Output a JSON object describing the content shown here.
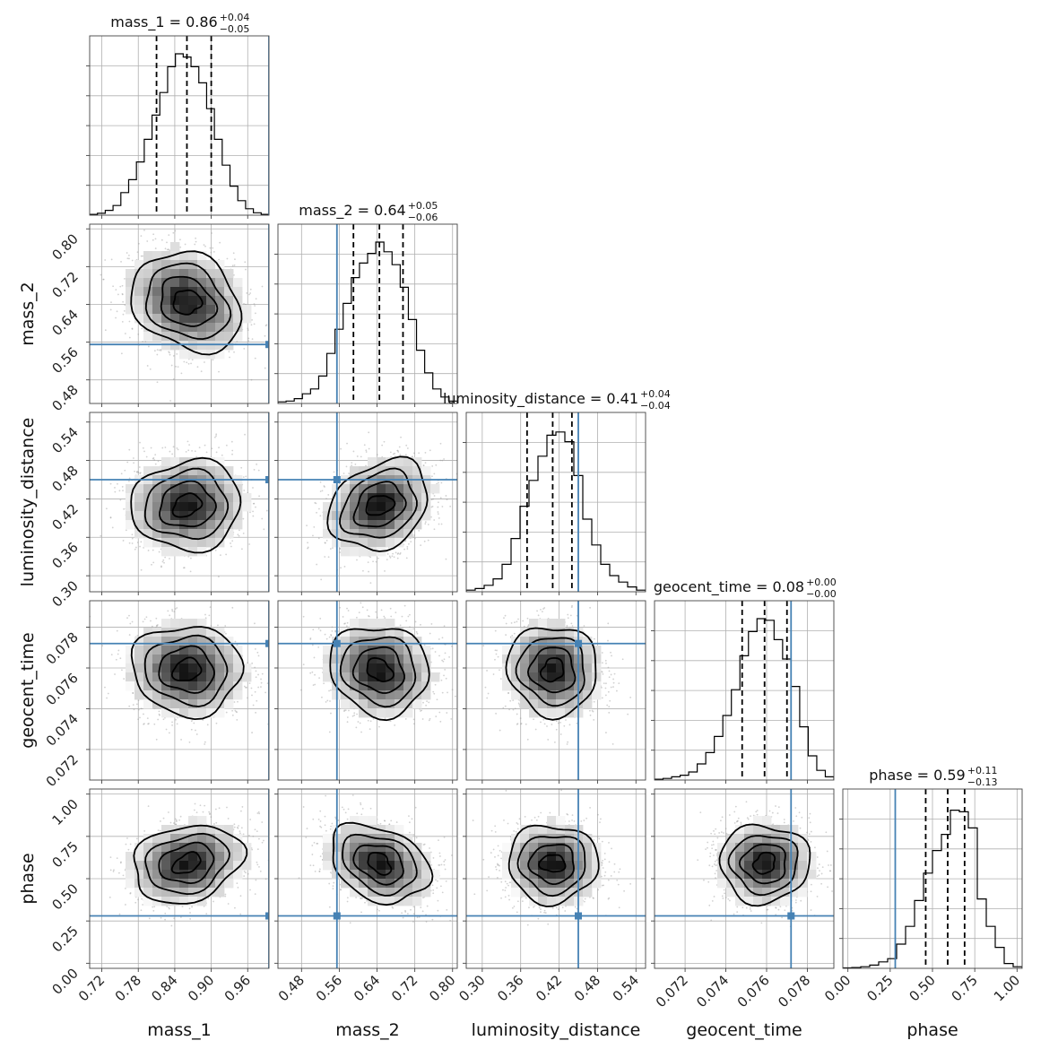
{
  "chart_data": {
    "type": "corner",
    "parameters": [
      {
        "name": "mass_1",
        "range": [
          0.7,
          0.995
        ],
        "ticks": [
          "0.72",
          "0.78",
          "0.84",
          "0.90",
          "0.96"
        ],
        "truth": 0.995,
        "quantiles": [
          0.81,
          0.86,
          0.9
        ],
        "title_main": "mass_1 = 0.86",
        "title_plus": "+0.04",
        "title_minus": "−0.05",
        "hist": [
          0.005,
          0.012,
          0.03,
          0.06,
          0.14,
          0.22,
          0.33,
          0.47,
          0.62,
          0.76,
          0.92,
          1.0,
          0.98,
          0.92,
          0.82,
          0.66,
          0.47,
          0.31,
          0.18,
          0.09,
          0.04,
          0.015,
          0.005
        ]
      },
      {
        "name": "mass_2",
        "range": [
          0.43,
          0.81
        ],
        "ticks": [
          "0.48",
          "0.56",
          "0.64",
          "0.72",
          "0.80"
        ],
        "truth": 0.555,
        "quantiles": [
          0.59,
          0.645,
          0.695
        ],
        "title_main": "mass_2 = 0.64",
        "title_plus": "+0.05",
        "title_minus": "−0.06",
        "hist": [
          0.01,
          0.015,
          0.03,
          0.06,
          0.09,
          0.17,
          0.31,
          0.46,
          0.62,
          0.78,
          0.87,
          0.93,
          1.0,
          0.94,
          0.86,
          0.72,
          0.52,
          0.33,
          0.19,
          0.09,
          0.04,
          0.015
        ]
      },
      {
        "name": "luminosity_distance",
        "range": [
          0.275,
          0.555
        ],
        "ticks": [
          "0.30",
          "0.36",
          "0.42",
          "0.48",
          "0.54"
        ],
        "truth": 0.45,
        "quantiles": [
          0.37,
          0.41,
          0.44
        ],
        "title_main": "luminosity_distance = 0.41",
        "title_plus": "+0.04",
        "title_minus": "−0.04",
        "hist": [
          0.01,
          0.02,
          0.04,
          0.08,
          0.17,
          0.33,
          0.53,
          0.69,
          0.84,
          0.97,
          0.99,
          0.93,
          0.72,
          0.45,
          0.29,
          0.17,
          0.1,
          0.06,
          0.03,
          0.01
        ]
      },
      {
        "name": "geocent_time",
        "range": [
          0.0705,
          0.0793
        ],
        "ticks": [
          "0.072",
          "0.074",
          "0.076",
          "0.078"
        ],
        "truth": 0.0772,
        "quantiles": [
          0.0748,
          0.0759,
          0.077
        ],
        "title_main": "geocent_time = 0.08",
        "title_plus": "+0.00",
        "title_minus": "−0.00",
        "hist": [
          0.005,
          0.01,
          0.02,
          0.03,
          0.05,
          0.1,
          0.17,
          0.27,
          0.4,
          0.56,
          0.77,
          0.92,
          1.0,
          0.99,
          0.87,
          0.75,
          0.58,
          0.33,
          0.15,
          0.06,
          0.02
        ]
      },
      {
        "name": "phase",
        "range": [
          -0.03,
          1.03
        ],
        "ticks": [
          "0.00",
          "0.25",
          "0.50",
          "0.75",
          "1.00"
        ],
        "truth": 0.28,
        "quantiles": [
          0.46,
          0.59,
          0.69
        ],
        "title_main": "phase = 0.59",
        "title_plus": "+0.11",
        "title_minus": "−0.13",
        "hist": [
          0.003,
          0.005,
          0.01,
          0.02,
          0.04,
          0.06,
          0.15,
          0.26,
          0.42,
          0.59,
          0.73,
          0.83,
          0.98,
          0.97,
          0.87,
          0.43,
          0.26,
          0.13,
          0.03,
          0.01
        ]
      }
    ],
    "y_label_params": [
      "mass_2",
      "luminosity_distance",
      "geocent_time",
      "phase"
    ],
    "x_label_params": [
      "mass_1",
      "mass_2",
      "luminosity_distance",
      "geocent_time",
      "phase"
    ],
    "contour_levels": [
      0.5,
      1.0,
      1.5,
      2.0
    ],
    "grid": true,
    "colors": {
      "line": "#000000",
      "truth": "#4682b4",
      "grid": "#b0b0b0",
      "scatter": "#9a9a9a"
    }
  }
}
